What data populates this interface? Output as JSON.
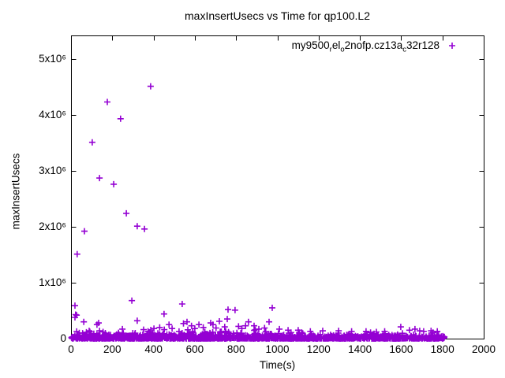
{
  "chart_data": {
    "type": "scatter",
    "title": "maxInsertUsecs vs Time for qp100.L2",
    "xlabel": "Time(s)",
    "ylabel": "maxInsertUsecs",
    "xlim": [
      0,
      2000
    ],
    "ylim": [
      0,
      5420000
    ],
    "grid": false,
    "legend_position": "top-right-inside",
    "x_ticks": [
      {
        "value": 0,
        "label": "0"
      },
      {
        "value": 200,
        "label": "200"
      },
      {
        "value": 400,
        "label": "400"
      },
      {
        "value": 600,
        "label": "600"
      },
      {
        "value": 800,
        "label": "800"
      },
      {
        "value": 1000,
        "label": "1000"
      },
      {
        "value": 1200,
        "label": "1200"
      },
      {
        "value": 1400,
        "label": "1400"
      },
      {
        "value": 1600,
        "label": "1600"
      },
      {
        "value": 1800,
        "label": "1800"
      },
      {
        "value": 2000,
        "label": "2000"
      }
    ],
    "y_ticks": [
      {
        "value": 0,
        "label": "0"
      },
      {
        "value": 1000000,
        "label": "1x10⁶"
      },
      {
        "value": 2000000,
        "label": "2x10⁶"
      },
      {
        "value": 3000000,
        "label": "3x10⁶"
      },
      {
        "value": 4000000,
        "label": "4x10⁶"
      },
      {
        "value": 5000000,
        "label": "5x10⁶"
      }
    ],
    "legend": {
      "text": "my9500_rel_o2nofp.cz13a_c32r128",
      "parts": [
        {
          "text": "my9500",
          "sub": false
        },
        {
          "text": "r",
          "sub": true
        },
        {
          "text": "el",
          "sub": false
        },
        {
          "text": "o",
          "sub": true
        },
        {
          "text": "2nofp.cz13a",
          "sub": false
        },
        {
          "text": "c",
          "sub": true
        },
        {
          "text": "32r128",
          "sub": false
        }
      ],
      "marker": "plus"
    },
    "series": [
      {
        "name": "my9500_rel_o2nofp.cz13a_c32r128",
        "color": "#9400D3",
        "marker": "plus",
        "outliers": [
          [
            30,
            1510000
          ],
          [
            65,
            1920000
          ],
          [
            103,
            3510000
          ],
          [
            138,
            2870000
          ],
          [
            176,
            4230000
          ],
          [
            207,
            2760000
          ],
          [
            240,
            3930000
          ],
          [
            268,
            2240000
          ],
          [
            321,
            2010000
          ],
          [
            356,
            1960000
          ],
          [
            386,
            4510000
          ],
          [
            19,
            590000
          ],
          [
            19,
            380000
          ],
          [
            22,
            430000
          ],
          [
            27,
            420000
          ],
          [
            62,
            300000
          ],
          [
            88,
            140000
          ],
          [
            126,
            250000
          ],
          [
            134,
            280000
          ],
          [
            138,
            140000
          ],
          [
            249,
            170000
          ],
          [
            295,
            680000
          ],
          [
            321,
            320000
          ],
          [
            352,
            160000
          ],
          [
            402,
            180000
          ],
          [
            430,
            200000
          ],
          [
            451,
            440000
          ],
          [
            475,
            250000
          ],
          [
            490,
            180000
          ],
          [
            539,
            620000
          ],
          [
            545,
            270000
          ],
          [
            562,
            300000
          ],
          [
            584,
            230000
          ],
          [
            600,
            180000
          ],
          [
            620,
            250000
          ],
          [
            641,
            200000
          ],
          [
            677,
            280000
          ],
          [
            688,
            250000
          ],
          [
            703,
            190000
          ],
          [
            719,
            310000
          ],
          [
            745,
            210000
          ],
          [
            757,
            350000
          ],
          [
            761,
            520000
          ],
          [
            795,
            510000
          ],
          [
            812,
            220000
          ],
          [
            828,
            180000
          ],
          [
            846,
            230000
          ],
          [
            860,
            300000
          ],
          [
            887,
            230000
          ],
          [
            910,
            170000
          ],
          [
            938,
            190000
          ],
          [
            960,
            300000
          ],
          [
            975,
            550000
          ],
          [
            1010,
            170000
          ],
          [
            1052,
            150000
          ],
          [
            1101,
            150000
          ],
          [
            1160,
            130000
          ],
          [
            1220,
            140000
          ],
          [
            1297,
            140000
          ],
          [
            1360,
            130000
          ],
          [
            1430,
            130000
          ],
          [
            1480,
            120000
          ],
          [
            1520,
            130000
          ],
          [
            1598,
            210000
          ],
          [
            1640,
            150000
          ],
          [
            1667,
            170000
          ],
          [
            1690,
            140000
          ],
          [
            1709,
            130000
          ],
          [
            1745,
            140000
          ],
          [
            1775,
            130000
          ]
        ],
        "dense_band": {
          "description": "dense cluster of per-second samples hugging y=0 from t=0 to t=1810, mostly below 150000 usecs",
          "x_range": [
            2,
            1810
          ],
          "exp_scale_early": 28000,
          "exp_scale_late": 20000,
          "y_max_early": 160000,
          "y_max_late": 110000,
          "approx_count": 1650,
          "seed": 1337
        }
      }
    ]
  },
  "colors": {
    "marker": "#9400D3",
    "axis": "#000000",
    "background": "#ffffff",
    "text": "#000000"
  }
}
